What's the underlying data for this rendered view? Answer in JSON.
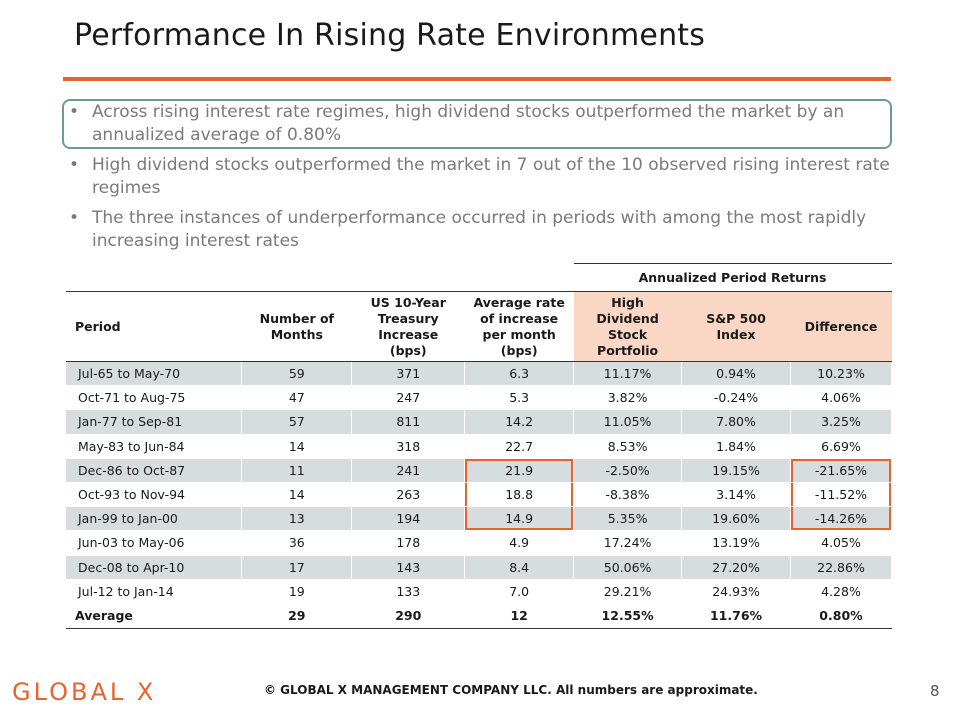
{
  "title": "Performance In Rising Rate Environments",
  "colors": {
    "accent": "#e8642c",
    "highlight_border": "#6f9a9a",
    "peach_header": "#fad7c4",
    "row_shade": "#d7dcdf"
  },
  "bullets": [
    "Across rising interest rate regimes, high dividend stocks outperformed the market by an annualized average of 0.80%",
    "High dividend stocks outperformed the market in 7 out of the 10 observed rising interest rate regimes",
    "The three instances of underperformance occurred in periods with among the most rapidly increasing interest rates"
  ],
  "table": {
    "group_header": "Annualized Period Returns",
    "headers": {
      "period": "Period",
      "months": [
        "Number of",
        "Months"
      ],
      "treasury": [
        "US 10-Year",
        "Treasury",
        "Increase",
        "(bps)"
      ],
      "avg_rate": [
        "Average rate",
        "of increase",
        "per month",
        "(bps)"
      ],
      "high_div": [
        "High",
        "Dividend",
        "Stock",
        "Portfolio"
      ],
      "sp500": [
        "S&P 500",
        "Index"
      ],
      "difference": "Difference"
    },
    "rows": [
      {
        "period": "Jul-65 to May-70",
        "months": "59",
        "treasury": "371",
        "avg_rate": "6.3",
        "high_div": "11.17%",
        "sp500": "0.94%",
        "difference": "10.23%"
      },
      {
        "period": "Oct-71 to Aug-75",
        "months": "47",
        "treasury": "247",
        "avg_rate": "5.3",
        "high_div": "3.82%",
        "sp500": "-0.24%",
        "difference": "4.06%"
      },
      {
        "period": "Jan-77 to Sep-81",
        "months": "57",
        "treasury": "811",
        "avg_rate": "14.2",
        "high_div": "11.05%",
        "sp500": "7.80%",
        "difference": "3.25%"
      },
      {
        "period": "May-83 to Jun-84",
        "months": "14",
        "treasury": "318",
        "avg_rate": "22.7",
        "high_div": "8.53%",
        "sp500": "1.84%",
        "difference": "6.69%"
      },
      {
        "period": "Dec-86 to Oct-87",
        "months": "11",
        "treasury": "241",
        "avg_rate": "21.9",
        "high_div": "-2.50%",
        "sp500": "19.15%",
        "difference": "-21.65%"
      },
      {
        "period": "Oct-93 to Nov-94",
        "months": "14",
        "treasury": "263",
        "avg_rate": "18.8",
        "high_div": "-8.38%",
        "sp500": "3.14%",
        "difference": "-11.52%"
      },
      {
        "period": "Jan-99 to Jan-00",
        "months": "13",
        "treasury": "194",
        "avg_rate": "14.9",
        "high_div": "5.35%",
        "sp500": "19.60%",
        "difference": "-14.26%"
      },
      {
        "period": "Jun-03 to May-06",
        "months": "36",
        "treasury": "178",
        "avg_rate": "4.9",
        "high_div": "17.24%",
        "sp500": "13.19%",
        "difference": "4.05%"
      },
      {
        "period": "Dec-08 to Apr-10",
        "months": "17",
        "treasury": "143",
        "avg_rate": "8.4",
        "high_div": "50.06%",
        "sp500": "27.20%",
        "difference": "22.86%"
      },
      {
        "period": "Jul-12 to Jan-14",
        "months": "19",
        "treasury": "133",
        "avg_rate": "7.0",
        "high_div": "29.21%",
        "sp500": "24.93%",
        "difference": "4.28%"
      }
    ],
    "average": {
      "period": "Average",
      "months": "29",
      "treasury": "290",
      "avg_rate": "12",
      "high_div": "12.55%",
      "sp500": "11.76%",
      "difference": "0.80%"
    }
  },
  "footer": {
    "logo": "GLOBAL X",
    "copyright": "© GLOBAL X MANAGEMENT COMPANY LLC. All numbers are approximate.",
    "page_number": "8"
  }
}
